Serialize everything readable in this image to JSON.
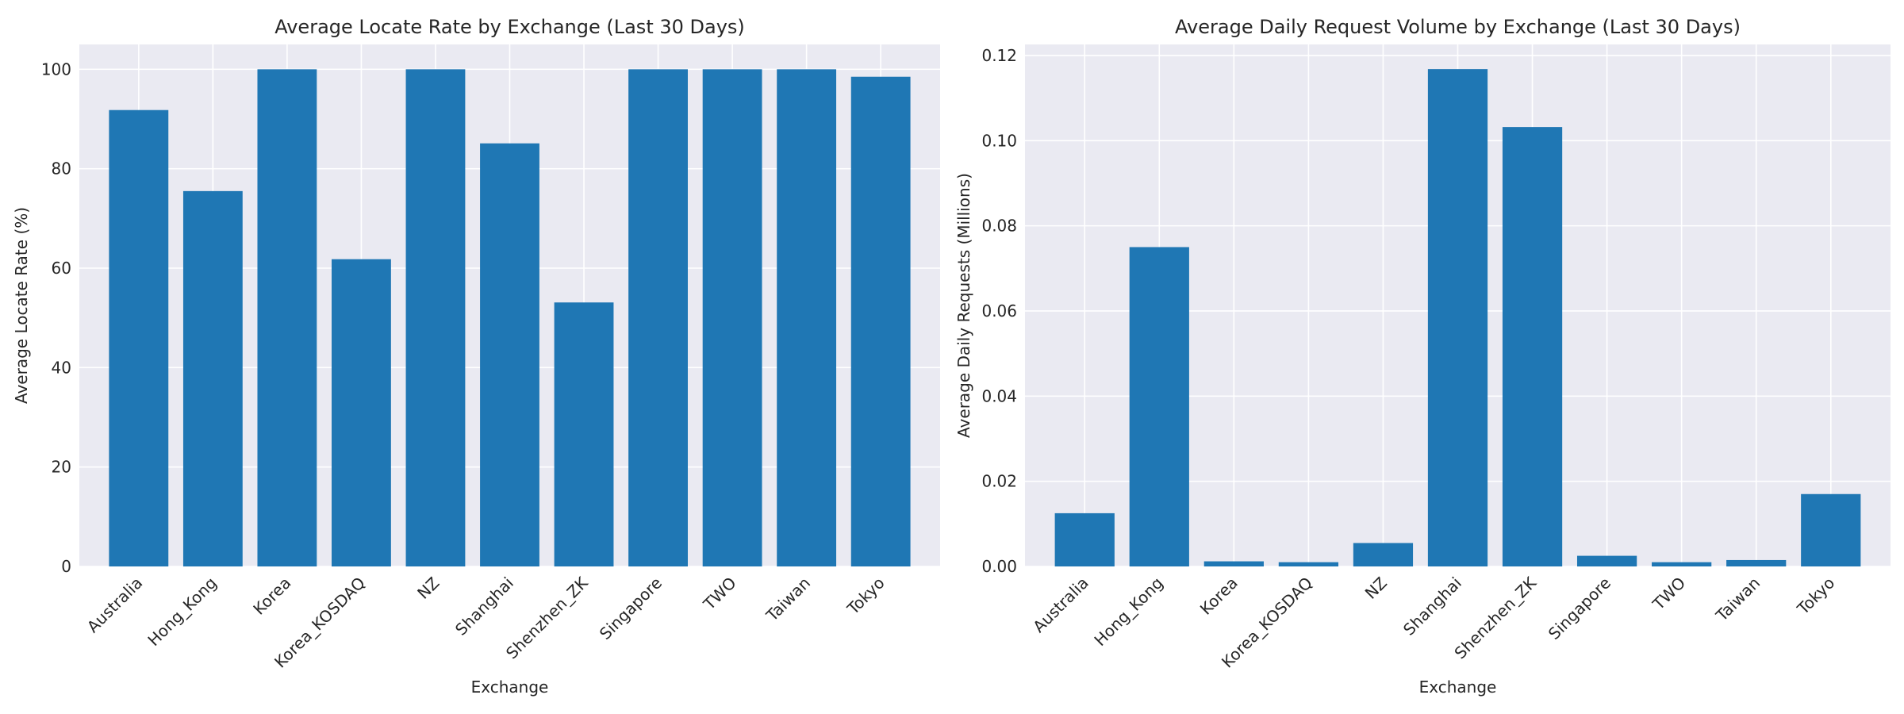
{
  "chart_data": [
    {
      "type": "bar",
      "title": "Average Locate Rate by Exchange (Last 30 Days)",
      "xlabel": "Exchange",
      "ylabel": "Average Locate Rate (%)",
      "categories": [
        "Australia",
        "Hong_Kong",
        "Korea",
        "Korea_KOSDAQ",
        "NZ",
        "Shanghai",
        "Shenzhen_ZK",
        "Singapore",
        "TWO",
        "Taiwan",
        "Tokyo"
      ],
      "values": [
        91.8,
        75.5,
        100,
        61.8,
        100,
        85.1,
        53.1,
        100,
        100,
        100,
        98.5
      ],
      "ylim": [
        0,
        105
      ],
      "yticks": [
        "0",
        "20",
        "40",
        "60",
        "80",
        "100"
      ],
      "grid": true,
      "bar_color": "#1f77b4"
    },
    {
      "type": "bar",
      "title": "Average Daily Request Volume by Exchange (Last 30 Days)",
      "xlabel": "Exchange",
      "ylabel": "Average Daily Requests (Millions)",
      "categories": [
        "Australia",
        "Hong_Kong",
        "Korea",
        "Korea_KOSDAQ",
        "NZ",
        "Shanghai",
        "Shenzhen_ZK",
        "Singapore",
        "TWO",
        "Taiwan",
        "Tokyo"
      ],
      "values": [
        0.0125,
        0.075,
        0.0012,
        0.001,
        0.0055,
        0.1168,
        0.1032,
        0.0025,
        0.001,
        0.0015,
        0.017
      ],
      "ylim": [
        0,
        0.1226
      ],
      "yticks": [
        "0.00",
        "0.02",
        "0.04",
        "0.06",
        "0.08",
        "0.10",
        "0.12"
      ],
      "grid": true,
      "bar_color": "#1f77b4"
    }
  ]
}
